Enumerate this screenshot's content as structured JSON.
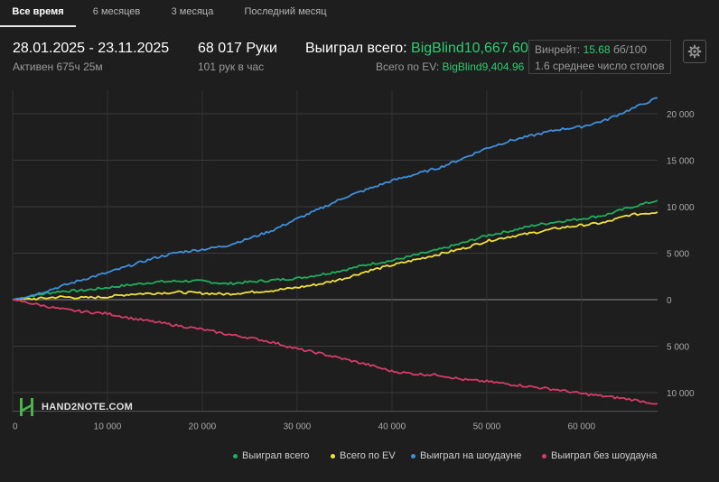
{
  "tabs": [
    {
      "label": "Все время",
      "active": true
    },
    {
      "label": "6 месяцев",
      "active": false
    },
    {
      "label": "3 месяца",
      "active": false
    },
    {
      "label": "Последний месяц",
      "active": false
    }
  ],
  "summary": {
    "date_range": "28.01.2025 - 23.11.2025",
    "active": "Активен 675ч 25м",
    "hands": "68 017 Руки",
    "hands_per_hour": "101 рук в час",
    "won_label": "Выиграл всего:",
    "won_value": "BigBlind10,667.60",
    "ev_label": "Всего по EV:",
    "ev_value": "BigBlind9,404.96",
    "winrate_label": "Винрейт:",
    "winrate_value": "15.68",
    "winrate_unit": "бб/100",
    "avg_tables": "1.6 среднее число столов"
  },
  "logo": {
    "text": "HAND2NOTE.COM"
  },
  "colors": {
    "green": "#1fae5e",
    "yellow": "#f0e040",
    "blue": "#3f8fdc",
    "red": "#d63c6a"
  },
  "chart_data": {
    "type": "line",
    "xlim": [
      0,
      68017
    ],
    "ylim": [
      -12000,
      22500
    ],
    "x_ticks": [
      0,
      10000,
      20000,
      30000,
      40000,
      50000,
      60000
    ],
    "x_tick_labels": [
      "0",
      "10 000",
      "20 000",
      "30 000",
      "40 000",
      "50 000",
      "60 000"
    ],
    "y_ticks": [
      20000,
      15000,
      10000,
      5000,
      0,
      -5000,
      -10000
    ],
    "y_tick_labels": [
      "20 000",
      "15 000",
      "10 000",
      "5 000",
      "0",
      "5 000",
      "10 000"
    ],
    "grid": true,
    "legend_position": "bottom-right",
    "x": [
      0,
      2500,
      5000,
      7500,
      10000,
      12500,
      15000,
      17500,
      20000,
      22500,
      25000,
      27500,
      30000,
      32500,
      35000,
      37500,
      40000,
      42500,
      45000,
      47500,
      50000,
      52500,
      55000,
      57500,
      60000,
      62500,
      65000,
      68017
    ],
    "series": [
      {
        "name": "Выиграл всего",
        "color": "#1fae5e",
        "values": [
          0,
          500,
          900,
          1000,
          1300,
          1600,
          1900,
          2000,
          2000,
          1700,
          1900,
          2100,
          2300,
          2700,
          3200,
          3800,
          4200,
          4800,
          5400,
          6100,
          6900,
          7400,
          8000,
          8400,
          8700,
          9100,
          9900,
          10667
        ]
      },
      {
        "name": "Всего по EV",
        "color": "#f0e040",
        "values": [
          0,
          100,
          300,
          200,
          300,
          600,
          700,
          800,
          700,
          600,
          800,
          1000,
          1300,
          1700,
          2300,
          3100,
          3700,
          4300,
          4900,
          5500,
          6300,
          6800,
          7200,
          7700,
          8000,
          8300,
          9100,
          9405
        ]
      },
      {
        "name": "Выиграл на шоудауне",
        "color": "#3f8fdc",
        "values": [
          0,
          600,
          1400,
          2200,
          2900,
          3700,
          4500,
          5100,
          5400,
          5800,
          6600,
          7500,
          8700,
          9800,
          11000,
          11900,
          12800,
          13500,
          14200,
          15200,
          16300,
          17100,
          17700,
          18300,
          18600,
          19300,
          20400,
          21700
        ]
      },
      {
        "name": "Выиграл без шоудауна",
        "color": "#d63c6a",
        "values": [
          0,
          -500,
          -1000,
          -1300,
          -1500,
          -2000,
          -2400,
          -2800,
          -3200,
          -3700,
          -4100,
          -4600,
          -5300,
          -5800,
          -6400,
          -7000,
          -7700,
          -8000,
          -8100,
          -8600,
          -8800,
          -9100,
          -9400,
          -9700,
          -10100,
          -10400,
          -10700,
          -11200
        ]
      }
    ]
  }
}
